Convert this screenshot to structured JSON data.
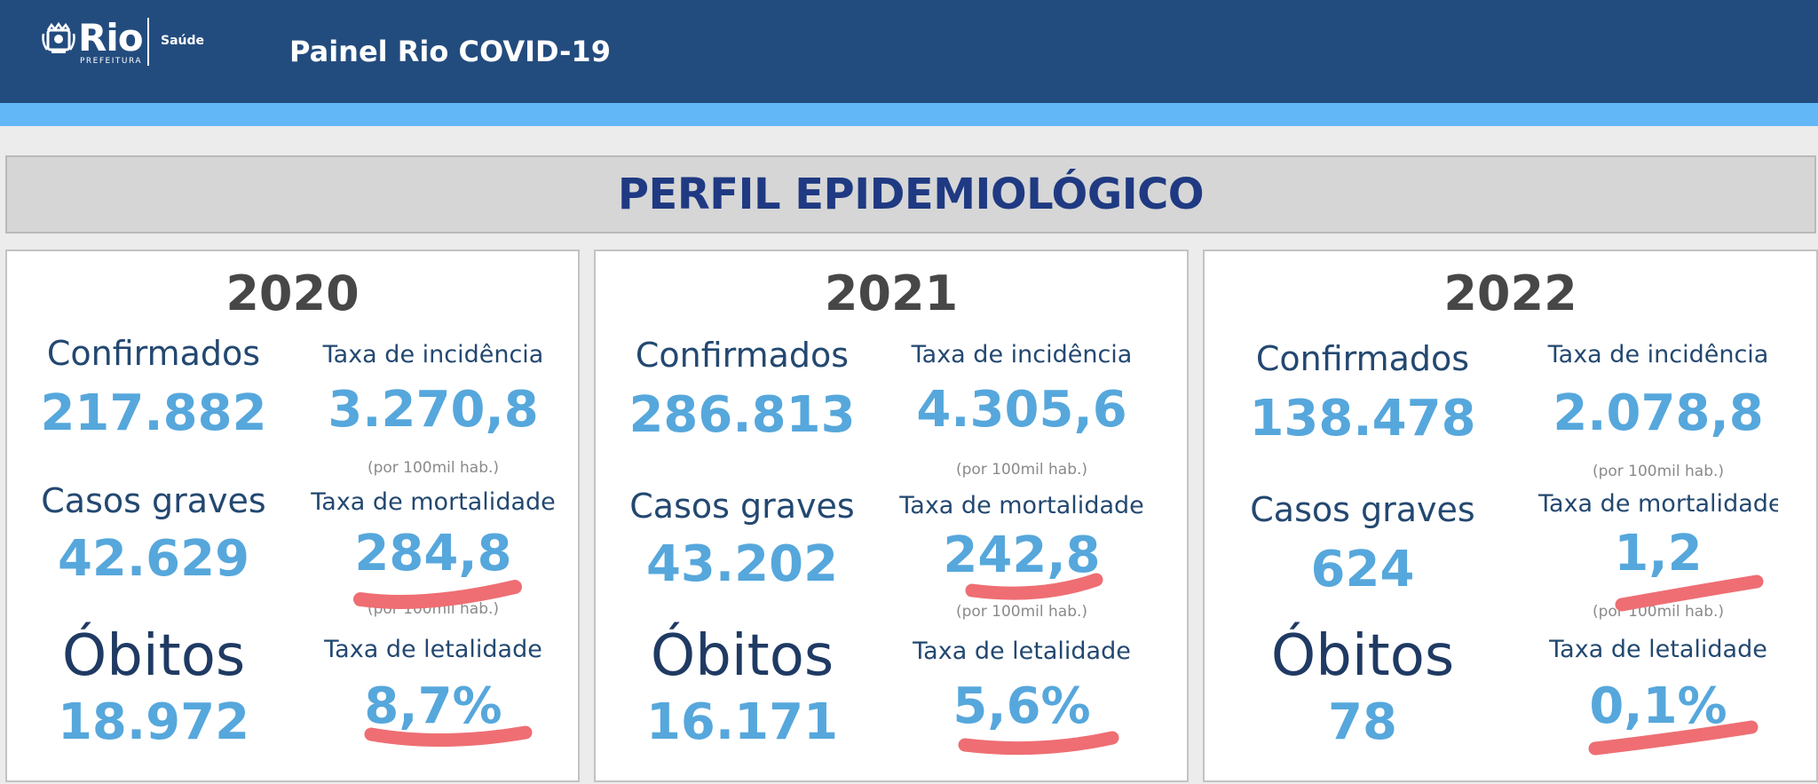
{
  "header": {
    "logo_text": "Rio",
    "logo_sub": "PREFEITURA",
    "logo_dept": "Saúde",
    "title": "Painel Rio COVID-19"
  },
  "banner": {
    "title": "PERFIL EPIDEMIOLÓGICO"
  },
  "labels": {
    "confirmados": "Confirmados",
    "casos_graves": "Casos graves",
    "obitos": "Óbitos",
    "incidencia": "Taxa de incidência",
    "mortalidade": "Taxa de mortalidade",
    "letalidade": "Taxa de letalidade",
    "per_hab": "(por 100mil hab.)"
  },
  "years": [
    {
      "year": "2020",
      "confirmados": "217.882",
      "casos_graves": "42.629",
      "obitos": "18.972",
      "incidencia": "3.270,8",
      "mortalidade": "284,8",
      "letalidade": "8,7%"
    },
    {
      "year": "2021",
      "confirmados": "286.813",
      "casos_graves": "43.202",
      "obitos": "16.171",
      "incidencia": "4.305,6",
      "mortalidade": "242,8",
      "letalidade": "5,6%"
    },
    {
      "year": "2022",
      "confirmados": "138.478",
      "casos_graves": "624",
      "obitos": "78",
      "incidencia": "2.078,8",
      "mortalidade": "1,2",
      "letalidade": "0,1%"
    }
  ],
  "colors": {
    "header_bg": "#234c7e",
    "stripe": "#62b8f7",
    "value_blue": "#56a7dc",
    "label_navy": "#234870",
    "annotation_red": "#ee6e73"
  }
}
